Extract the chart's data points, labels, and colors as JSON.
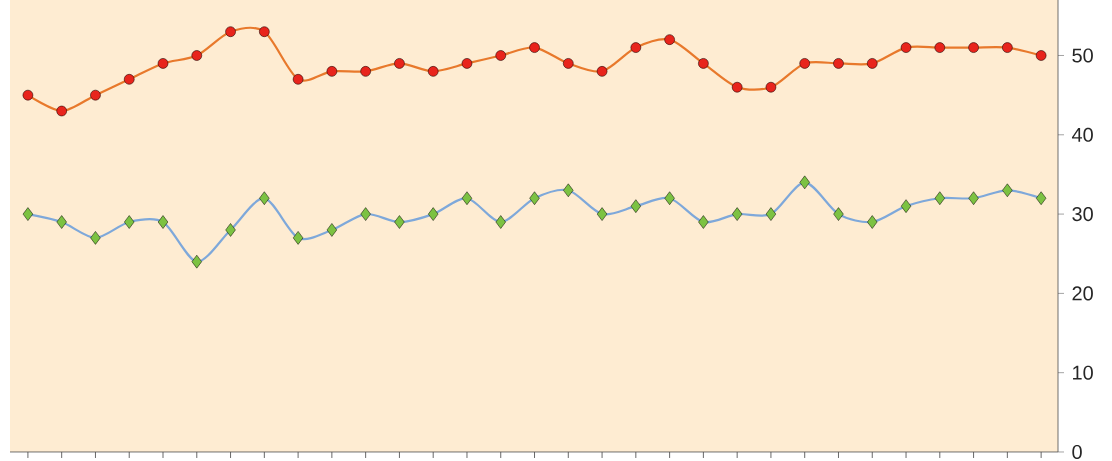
{
  "chart_data": {
    "type": "line",
    "categories": [
      null,
      null,
      null,
      null,
      null,
      null,
      null,
      null,
      null,
      null,
      null,
      null,
      null,
      null,
      null,
      null,
      null,
      null,
      null,
      null,
      null,
      null,
      null,
      null,
      null,
      null,
      null,
      null,
      null,
      null,
      null
    ],
    "series": [
      {
        "color": "#e8792c",
        "colors": [
          "#e8241c",
          "#e8241c",
          "#e8241c",
          "#e8241c",
          "#e8241c",
          "#e8241c",
          "#e8241c",
          "#e8241c",
          "#e8241c",
          "#e8241c",
          "#e8241c",
          "#e8241c",
          "#e8241c",
          "#e8241c",
          "#e8241c",
          "#e8241c",
          "#e8241c",
          "#e8241c",
          "#e8241c",
          "#e8241c",
          "#e8241c",
          "#e8241c",
          "#e8241c",
          "#e8241c",
          "#e8241c",
          "#e8241c",
          "#e8241c",
          "#e8241c",
          "#e8241c",
          "#e8241c",
          "#e8241c"
        ],
        "marker": "circle",
        "values": [
          45,
          43,
          45,
          47,
          49,
          50,
          53,
          53,
          47,
          48,
          48,
          49,
          48,
          49,
          50,
          51,
          49,
          48,
          51,
          52,
          49,
          46,
          46,
          49,
          49,
          49,
          51,
          51,
          51,
          51,
          50
        ]
      },
      {
        "color": "#7ea8da",
        "colors": [
          "#7cc242",
          "#7cc242",
          "#7cc242",
          "#7cc242",
          "#7cc242",
          "#7cc242",
          "#7cc242",
          "#7cc242",
          "#7cc242",
          "#7cc242",
          "#7cc242",
          "#7cc242",
          "#7cc242",
          "#7cc242",
          "#7cc242",
          "#7cc242",
          "#7cc242",
          "#7cc242",
          "#7cc242",
          "#7cc242",
          "#7cc242",
          "#7cc242",
          "#7cc242",
          "#7cc242",
          "#7cc242",
          "#7cc242",
          "#7cc242",
          "#7cc242",
          "#7cc242",
          "#7cc242",
          "#7cc242"
        ],
        "marker": "diamond",
        "values": [
          30,
          29,
          27,
          29,
          29,
          24,
          28,
          32,
          27,
          28,
          30,
          29,
          30,
          32,
          29,
          32,
          33,
          30,
          31,
          32,
          29,
          30,
          30,
          34,
          30,
          29,
          31,
          32,
          32,
          33,
          32
        ]
      }
    ],
    "ylim": [
      0,
      57
    ],
    "yticks": [
      0,
      10,
      20,
      30,
      40,
      50
    ],
    "tick_labels": "y",
    "grid": false
  }
}
